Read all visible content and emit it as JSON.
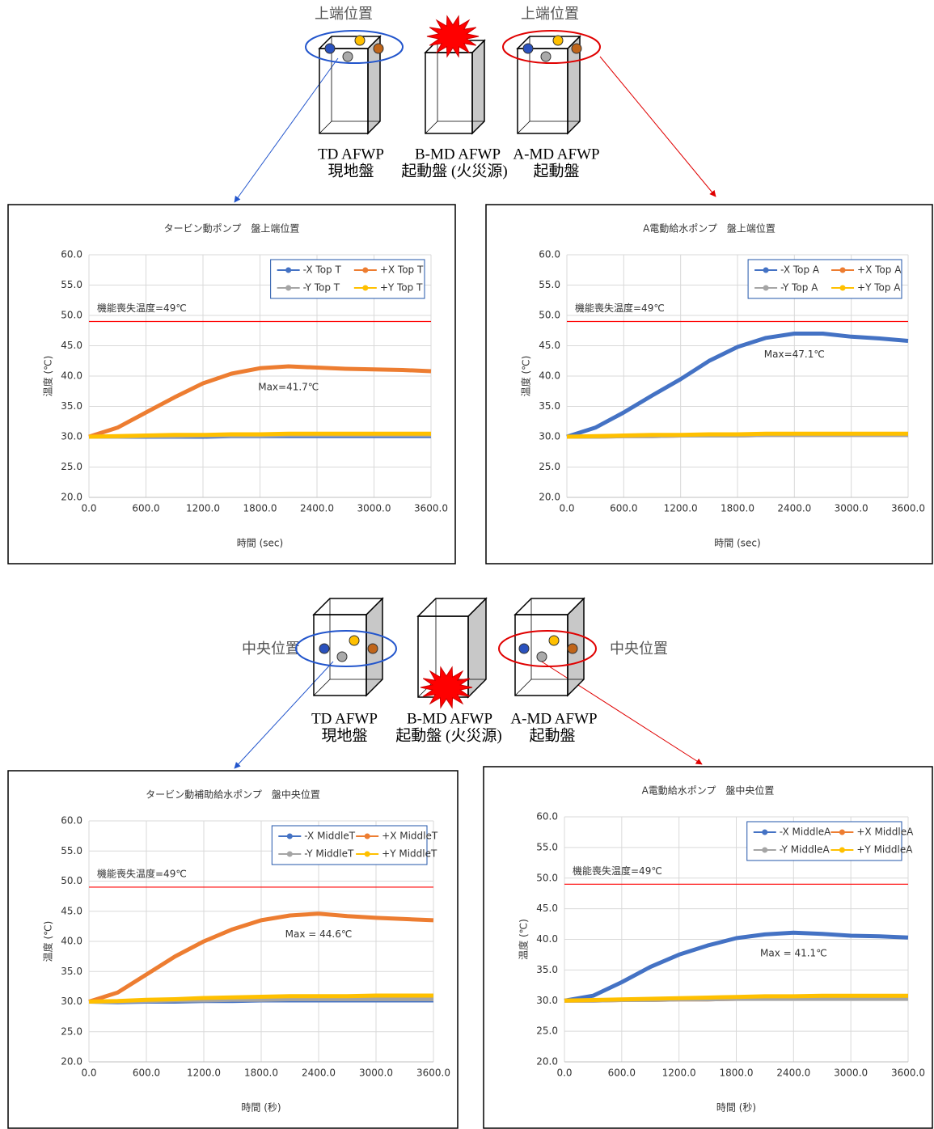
{
  "diagrams": [
    {
      "location_labels": [
        "上端位置",
        "上端位置"
      ],
      "panels": [
        {
          "name": "TD AFWP",
          "sub": "現地盤"
        },
        {
          "name": "B-MD AFWP",
          "sub": "起動盤 (火災源)"
        },
        {
          "name": "A-MD AFWP",
          "sub": "起動盤"
        }
      ]
    },
    {
      "location_labels": [
        "中央位置",
        "中央位置"
      ],
      "panels": [
        {
          "name": "TD AFWP",
          "sub": "現地盤"
        },
        {
          "name": "B-MD AFWP",
          "sub": "起動盤 (火災源)"
        },
        {
          "name": "A-MD AFWP",
          "sub": "起動盤"
        }
      ]
    }
  ],
  "chart_data": [
    {
      "type": "line",
      "title": "タービン動ポンプ　盤上端位置",
      "xlabel": "時間 (sec)",
      "ylabel": "温度 (℃)",
      "xlim": [
        0,
        3600
      ],
      "ylim": [
        20,
        60
      ],
      "grid": true,
      "xticks": [
        {
          "value": 0,
          "label": "0.0"
        },
        {
          "value": 600,
          "label": "600.0"
        },
        {
          "value": 1200,
          "label": "1200.0"
        },
        {
          "value": 1800,
          "label": "1800.0"
        },
        {
          "value": 2400,
          "label": "2400.0"
        },
        {
          "value": 3000,
          "label": "3000.0"
        },
        {
          "value": 3600,
          "label": "3600.0"
        }
      ],
      "yticks": [
        {
          "value": 20,
          "label": "20.0"
        },
        {
          "value": 25,
          "label": "25.0"
        },
        {
          "value": 30,
          "label": "30.0"
        },
        {
          "value": 35,
          "label": "35.0"
        },
        {
          "value": 40,
          "label": "40.0"
        },
        {
          "value": 45,
          "label": "45.0"
        },
        {
          "value": 50,
          "label": "50.0"
        },
        {
          "value": 55,
          "label": "55.0"
        },
        {
          "value": 60,
          "label": "60.0"
        }
      ],
      "hline": {
        "value": 49,
        "label": "機能喪失温度=49℃",
        "color": "#ff0000"
      },
      "annotation": "Max=41.7℃",
      "x": [
        0,
        300,
        600,
        900,
        1200,
        1500,
        1800,
        2100,
        2400,
        2700,
        3000,
        3300,
        3600
      ],
      "series": [
        {
          "name": "-X Top T",
          "color": "#4472c4",
          "values": [
            30,
            30,
            30,
            30,
            30,
            30.1,
            30.1,
            30.1,
            30.1,
            30.1,
            30.1,
            30.1,
            30.1
          ]
        },
        {
          "name": "+X Top T",
          "color": "#ed7d31",
          "values": [
            30,
            31.5,
            34,
            36.5,
            38.8,
            40.4,
            41.3,
            41.6,
            41.4,
            41.2,
            41.1,
            41.0,
            40.8
          ]
        },
        {
          "name": "-Y Top T",
          "color": "#a5a5a5",
          "values": [
            30,
            30,
            30.1,
            30.1,
            30.2,
            30.2,
            30.2,
            30.3,
            30.3,
            30.3,
            30.3,
            30.3,
            30.3
          ]
        },
        {
          "name": "+Y Top T",
          "color": "#ffc000",
          "values": [
            30,
            30.1,
            30.2,
            30.3,
            30.3,
            30.4,
            30.4,
            30.5,
            30.5,
            30.5,
            30.5,
            30.5,
            30.5
          ]
        }
      ]
    },
    {
      "type": "line",
      "title": "A電動給水ポンプ　盤上端位置",
      "xlabel": "時間 (sec)",
      "ylabel": "温度 (℃)",
      "xlim": [
        0,
        3600
      ],
      "ylim": [
        20,
        60
      ],
      "grid": true,
      "xticks": [
        {
          "value": 0,
          "label": "0.0"
        },
        {
          "value": 600,
          "label": "600.0"
        },
        {
          "value": 1200,
          "label": "1200.0"
        },
        {
          "value": 1800,
          "label": "1800.0"
        },
        {
          "value": 2400,
          "label": "2400.0"
        },
        {
          "value": 3000,
          "label": "3000.0"
        },
        {
          "value": 3600,
          "label": "3600.0"
        }
      ],
      "yticks": [
        {
          "value": 20,
          "label": "20.0"
        },
        {
          "value": 25,
          "label": "25.0"
        },
        {
          "value": 30,
          "label": "30.0"
        },
        {
          "value": 35,
          "label": "35.0"
        },
        {
          "value": 40,
          "label": "40.0"
        },
        {
          "value": 45,
          "label": "45.0"
        },
        {
          "value": 50,
          "label": "50.0"
        },
        {
          "value": 55,
          "label": "55.0"
        },
        {
          "value": 60,
          "label": "60.0"
        }
      ],
      "hline": {
        "value": 49,
        "label": "機能喪失温度=49℃",
        "color": "#ff0000"
      },
      "annotation": "Max=47.1℃",
      "x": [
        0,
        300,
        600,
        900,
        1200,
        1500,
        1800,
        2100,
        2400,
        2700,
        3000,
        3300,
        3600
      ],
      "series": [
        {
          "name": "-X Top A",
          "color": "#4472c4",
          "values": [
            30,
            31.5,
            34,
            36.8,
            39.5,
            42.5,
            44.8,
            46.3,
            47.0,
            47.0,
            46.5,
            46.2,
            45.8
          ]
        },
        {
          "name": "+X Top A",
          "color": "#ed7d31",
          "values": [
            30,
            30,
            30.1,
            30.1,
            30.2,
            30.2,
            30.2,
            30.3,
            30.3,
            30.3,
            30.3,
            30.3,
            30.3
          ]
        },
        {
          "name": "-Y Top A",
          "color": "#a5a5a5",
          "values": [
            30,
            30,
            30.1,
            30.1,
            30.2,
            30.2,
            30.2,
            30.3,
            30.3,
            30.3,
            30.3,
            30.3,
            30.3
          ]
        },
        {
          "name": "+Y Top A",
          "color": "#ffc000",
          "values": [
            30,
            30.1,
            30.2,
            30.3,
            30.3,
            30.4,
            30.4,
            30.5,
            30.5,
            30.5,
            30.5,
            30.5,
            30.5
          ]
        }
      ]
    },
    {
      "type": "line",
      "title": "タービン動補助給水ポンプ　盤中央位置",
      "xlabel": "時間 (秒)",
      "ylabel": "温度 (℃)",
      "xlim": [
        0,
        3600
      ],
      "ylim": [
        20,
        60
      ],
      "grid": true,
      "xticks": [
        {
          "value": 0,
          "label": "0.0"
        },
        {
          "value": 600,
          "label": "600.0"
        },
        {
          "value": 1200,
          "label": "1200.0"
        },
        {
          "value": 1800,
          "label": "1800.0"
        },
        {
          "value": 2400,
          "label": "2400.0"
        },
        {
          "value": 3000,
          "label": "3000.0"
        },
        {
          "value": 3600,
          "label": "3600.0"
        }
      ],
      "yticks": [
        {
          "value": 20,
          "label": "20.0"
        },
        {
          "value": 25,
          "label": "25.0"
        },
        {
          "value": 30,
          "label": "30.0"
        },
        {
          "value": 35,
          "label": "35.0"
        },
        {
          "value": 40,
          "label": "40.0"
        },
        {
          "value": 45,
          "label": "45.0"
        },
        {
          "value": 50,
          "label": "50.0"
        },
        {
          "value": 55,
          "label": "55.0"
        },
        {
          "value": 60,
          "label": "60.0"
        }
      ],
      "hline": {
        "value": 49,
        "label": "機能喪失温度=49℃",
        "color": "#ff0000"
      },
      "annotation": "Max = 44.6℃",
      "x": [
        0,
        300,
        600,
        900,
        1200,
        1500,
        1800,
        2100,
        2400,
        2700,
        3000,
        3300,
        3600
      ],
      "series": [
        {
          "name": "-X MiddleT",
          "color": "#4472c4",
          "values": [
            30,
            29.9,
            30,
            30,
            30.1,
            30.1,
            30.2,
            30.2,
            30.2,
            30.2,
            30.2,
            30.2,
            30.2
          ]
        },
        {
          "name": "+X MiddleT",
          "color": "#ed7d31",
          "values": [
            30,
            31.5,
            34.5,
            37.5,
            40,
            42,
            43.5,
            44.3,
            44.6,
            44.2,
            43.9,
            43.7,
            43.5
          ]
        },
        {
          "name": "-Y MiddleT",
          "color": "#a5a5a5",
          "values": [
            30,
            30,
            30.1,
            30.2,
            30.2,
            30.3,
            30.3,
            30.4,
            30.4,
            30.4,
            30.4,
            30.4,
            30.4
          ]
        },
        {
          "name": "+Y MiddleT",
          "color": "#ffc000",
          "values": [
            30,
            30.1,
            30.3,
            30.4,
            30.6,
            30.7,
            30.8,
            30.9,
            30.9,
            30.9,
            31.0,
            31.0,
            31.0
          ]
        }
      ]
    },
    {
      "type": "line",
      "title": "A電動給水ポンプ　盤中央位置",
      "xlabel": "時間 (秒)",
      "ylabel": "温度 (℃)",
      "xlim": [
        0,
        3600
      ],
      "ylim": [
        20,
        60
      ],
      "grid": true,
      "xticks": [
        {
          "value": 0,
          "label": "0.0"
        },
        {
          "value": 600,
          "label": "600.0"
        },
        {
          "value": 1200,
          "label": "1200.0"
        },
        {
          "value": 1800,
          "label": "1800.0"
        },
        {
          "value": 2400,
          "label": "2400.0"
        },
        {
          "value": 3000,
          "label": "3000.0"
        },
        {
          "value": 3600,
          "label": "3600.0"
        }
      ],
      "yticks": [
        {
          "value": 20,
          "label": "20.0"
        },
        {
          "value": 25,
          "label": "25.0"
        },
        {
          "value": 30,
          "label": "30.0"
        },
        {
          "value": 35,
          "label": "35.0"
        },
        {
          "value": 40,
          "label": "40.0"
        },
        {
          "value": 45,
          "label": "45.0"
        },
        {
          "value": 50,
          "label": "50.0"
        },
        {
          "value": 55,
          "label": "55.0"
        },
        {
          "value": 60,
          "label": "60.0"
        }
      ],
      "hline": {
        "value": 49,
        "label": "機能喪失温度=49℃",
        "color": "#ff0000"
      },
      "annotation": "Max = 41.1℃",
      "x": [
        0,
        300,
        600,
        900,
        1200,
        1500,
        1800,
        2100,
        2400,
        2700,
        3000,
        3300,
        3600
      ],
      "series": [
        {
          "name": "-X MiddleA",
          "color": "#4472c4",
          "values": [
            30,
            30.8,
            33,
            35.5,
            37.5,
            39,
            40.2,
            40.8,
            41.1,
            40.9,
            40.6,
            40.5,
            40.3
          ]
        },
        {
          "name": "+X MiddleA",
          "color": "#ed7d31",
          "values": [
            30,
            30,
            30.1,
            30.1,
            30.2,
            30.2,
            30.3,
            30.3,
            30.3,
            30.3,
            30.3,
            30.3,
            30.3
          ]
        },
        {
          "name": "-Y MiddleA",
          "color": "#a5a5a5",
          "values": [
            30,
            30,
            30.1,
            30.1,
            30.2,
            30.2,
            30.3,
            30.3,
            30.3,
            30.3,
            30.3,
            30.3,
            30.3
          ]
        },
        {
          "name": "+Y MiddleA",
          "color": "#ffc000",
          "values": [
            30,
            30.1,
            30.2,
            30.3,
            30.4,
            30.5,
            30.6,
            30.7,
            30.7,
            30.8,
            30.8,
            30.8,
            30.8
          ]
        }
      ]
    }
  ]
}
